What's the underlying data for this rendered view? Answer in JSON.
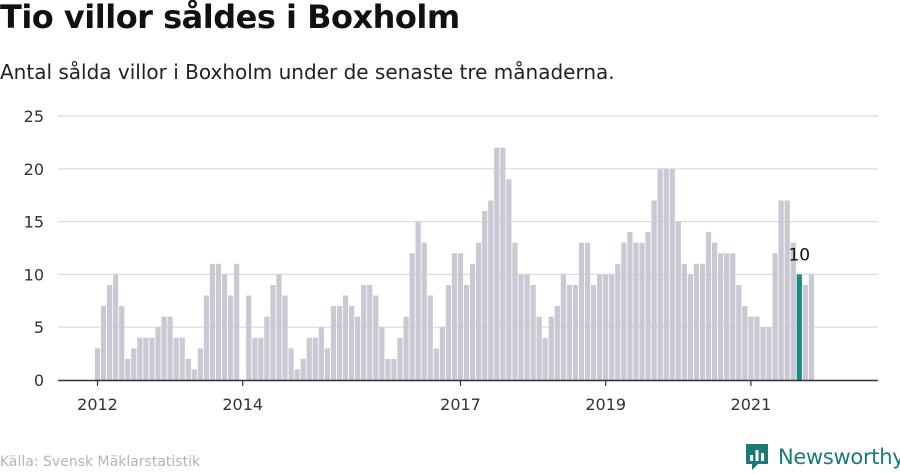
{
  "header": {
    "title": "Tio villor såldes i Boxholm",
    "subtitle": "Antal sålda villor i Boxholm under de senaste tre månaderna."
  },
  "footer": {
    "source": "Källa: Svensk Mäklarstatistik",
    "brand": "Newsworthy",
    "brand_icon": "newsworthy-logo-icon"
  },
  "colors": {
    "bar": "#c9c8d3",
    "highlight": "#1b8a82",
    "grid": "#dcdcdc",
    "axis": "#333333"
  },
  "chart_data": {
    "type": "bar",
    "title": "Tio villor såldes i Boxholm",
    "xlabel": "",
    "ylabel": "",
    "ylim": [
      0,
      25
    ],
    "yticks": [
      0,
      5,
      10,
      15,
      20,
      25
    ],
    "grid": true,
    "xtick_labels": [
      {
        "label": "2012",
        "index": 0
      },
      {
        "label": "2014",
        "index": 24
      },
      {
        "label": "2017",
        "index": 60
      },
      {
        "label": "2019",
        "index": 84
      },
      {
        "label": "2021",
        "index": 108
      }
    ],
    "highlight_index": 116,
    "highlight_label": "10",
    "values": [
      3,
      7,
      9,
      10,
      7,
      2,
      3,
      4,
      4,
      4,
      5,
      6,
      6,
      4,
      4,
      2,
      1,
      3,
      8,
      11,
      11,
      10,
      8,
      11,
      0,
      8,
      4,
      4,
      6,
      9,
      10,
      8,
      3,
      1,
      2,
      4,
      4,
      5,
      3,
      7,
      7,
      8,
      7,
      6,
      9,
      9,
      8,
      5,
      2,
      2,
      4,
      6,
      12,
      15,
      13,
      8,
      3,
      5,
      9,
      12,
      12,
      9,
      11,
      13,
      16,
      17,
      22,
      22,
      19,
      13,
      10,
      10,
      9,
      6,
      4,
      6,
      7,
      10,
      9,
      9,
      13,
      13,
      9,
      10,
      10,
      10,
      11,
      13,
      14,
      13,
      13,
      14,
      17,
      20,
      20,
      20,
      15,
      11,
      10,
      11,
      11,
      14,
      13,
      12,
      12,
      12,
      9,
      7,
      6,
      6,
      5,
      5,
      12,
      17,
      17,
      13,
      10,
      9,
      10
    ]
  }
}
